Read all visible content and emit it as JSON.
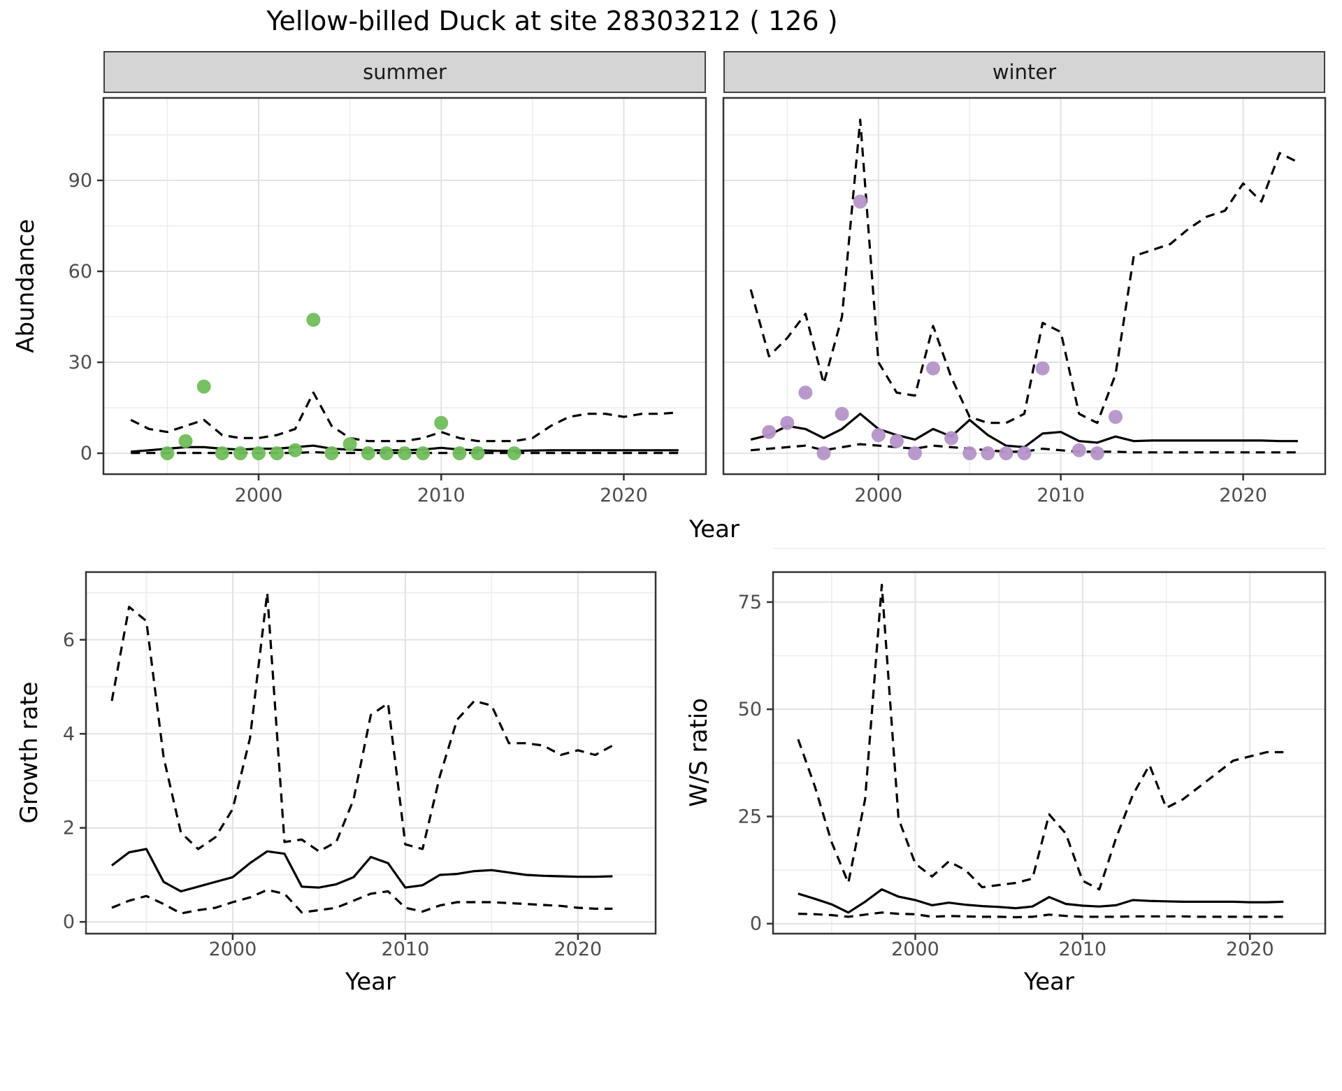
{
  "page_title": "Yellow-billed Duck at site 28303212 ( 126 )",
  "top_row": {
    "facets": [
      {
        "label": "summer"
      },
      {
        "label": "winter"
      }
    ],
    "ylabel": "Abundance",
    "xlabel": "Year"
  },
  "bottom_row": [
    {
      "ylabel": "Growth rate",
      "xlabel": "Year"
    },
    {
      "ylabel": "W/S ratio",
      "xlabel": "Year"
    }
  ],
  "colors": {
    "summer_points": "#70BD5B",
    "winter_points": "#B593C8",
    "line": "#000000",
    "strip_bg": "#D5D5D5",
    "grid_major": "#E2E2E2",
    "grid_minor": "#EDEDED",
    "panel_border": "#333333",
    "tick_text": "#4D4D4D"
  },
  "chart_data": [
    {
      "type": "line",
      "facet": "summer",
      "xlabel": "Year",
      "ylabel": "Abundance",
      "x": [
        1993,
        1994,
        1995,
        1996,
        1997,
        1998,
        1999,
        2000,
        2001,
        2002,
        2003,
        2004,
        2005,
        2006,
        2007,
        2008,
        2009,
        2010,
        2011,
        2012,
        2013,
        2014,
        2015,
        2016,
        2017,
        2018,
        2019,
        2020,
        2021,
        2022,
        2023
      ],
      "series": [
        {
          "name": "median",
          "style": "solid",
          "values": [
            0.5,
            1,
            1.5,
            2,
            2,
            1.5,
            1.2,
            1.5,
            1.5,
            2,
            2.5,
            1.5,
            1.2,
            1,
            1,
            1,
            1.2,
            1.8,
            1.2,
            1,
            0.8,
            0.8,
            0.9,
            1,
            1,
            1,
            1,
            1,
            1,
            1,
            1
          ]
        },
        {
          "name": "lower_CI",
          "style": "dashed",
          "values": [
            0.1,
            0.1,
            0.1,
            0.1,
            0.1,
            0.1,
            0.1,
            0.1,
            0.1,
            0.1,
            0.4,
            0.1,
            0.1,
            0.1,
            0.1,
            0.1,
            0.1,
            0.1,
            0.1,
            0.1,
            0.1,
            0.1,
            0.1,
            0.1,
            0.1,
            0.1,
            0.1,
            0.1,
            0.1,
            0.1,
            0.1
          ]
        },
        {
          "name": "upper_CI",
          "style": "dashed",
          "values": [
            11,
            8,
            7,
            9,
            11,
            6,
            5,
            5,
            6,
            8,
            20,
            9,
            5,
            4,
            4,
            4,
            5,
            7,
            5,
            4,
            4,
            4,
            5,
            9,
            12,
            13,
            13,
            12,
            13,
            13,
            13.5
          ]
        }
      ],
      "points": {
        "name": "observed",
        "color": "#70BD5B",
        "xy": [
          [
            1995,
            0
          ],
          [
            1996,
            4
          ],
          [
            1997,
            22
          ],
          [
            1998,
            0
          ],
          [
            1999,
            0
          ],
          [
            2000,
            0
          ],
          [
            2001,
            0
          ],
          [
            2002,
            1
          ],
          [
            2003,
            44
          ],
          [
            2004,
            0
          ],
          [
            2005,
            3
          ],
          [
            2006,
            0
          ],
          [
            2007,
            0
          ],
          [
            2008,
            0
          ],
          [
            2009,
            0
          ],
          [
            2010,
            10
          ],
          [
            2011,
            0
          ],
          [
            2012,
            0
          ],
          [
            2014,
            0
          ]
        ]
      },
      "xlim": [
        1991.5,
        2024.5
      ],
      "ylim": [
        -6.9,
        117.2
      ],
      "xticks": [
        2000,
        2010,
        2020
      ],
      "xticks_minor": [
        1995,
        2005,
        2015
      ],
      "yticks": [
        0,
        30,
        60,
        90
      ],
      "yticks_minor": [
        15,
        45,
        75,
        105
      ],
      "grid": true,
      "legend": "none"
    },
    {
      "type": "line",
      "facet": "winter",
      "xlabel": "Year",
      "ylabel": "Abundance",
      "x": [
        1993,
        1994,
        1995,
        1996,
        1997,
        1998,
        1999,
        2000,
        2001,
        2002,
        2003,
        2004,
        2005,
        2006,
        2007,
        2008,
        2009,
        2010,
        2011,
        2012,
        2013,
        2014,
        2015,
        2016,
        2017,
        2018,
        2019,
        2020,
        2021,
        2022,
        2023
      ],
      "series": [
        {
          "name": "median",
          "style": "solid",
          "values": [
            4.5,
            6,
            9,
            8,
            5,
            8,
            13,
            8,
            6,
            4.5,
            8,
            5.5,
            11,
            6,
            2.5,
            2,
            6.5,
            7,
            4,
            3.5,
            5.5,
            4,
            4.2,
            4.2,
            4.2,
            4.2,
            4.2,
            4.2,
            4.2,
            4,
            4
          ]
        },
        {
          "name": "lower_CI",
          "style": "dashed",
          "values": [
            1,
            1.5,
            2,
            2.5,
            1,
            2,
            3,
            2.5,
            2,
            1.5,
            2.5,
            2,
            1.5,
            1,
            0.5,
            0.5,
            1.5,
            1,
            0.5,
            0.5,
            0.5,
            0.3,
            0.3,
            0.3,
            0.3,
            0.3,
            0.3,
            0.3,
            0.3,
            0.3,
            0.3
          ]
        },
        {
          "name": "upper_CI",
          "style": "dashed",
          "values": [
            54,
            32,
            38,
            46,
            23,
            45,
            110,
            30,
            20,
            19,
            42,
            25,
            12,
            10,
            10,
            13,
            43,
            40,
            13,
            10,
            26,
            65,
            67,
            69,
            74,
            78,
            80,
            89,
            83,
            99,
            96
          ]
        }
      ],
      "points": {
        "name": "observed",
        "color": "#B593C8",
        "xy": [
          [
            1994,
            7
          ],
          [
            1995,
            10
          ],
          [
            1996,
            20
          ],
          [
            1997,
            0
          ],
          [
            1998,
            13
          ],
          [
            1999,
            83
          ],
          [
            2000,
            6
          ],
          [
            2001,
            4
          ],
          [
            2002,
            0
          ],
          [
            2003,
            28
          ],
          [
            2004,
            5
          ],
          [
            2005,
            0
          ],
          [
            2006,
            0
          ],
          [
            2007,
            0
          ],
          [
            2008,
            0
          ],
          [
            2009,
            28
          ],
          [
            2011,
            1
          ],
          [
            2012,
            0
          ],
          [
            2013,
            12
          ]
        ]
      },
      "xlim": [
        1991.5,
        2024.5
      ],
      "ylim": [
        -6.9,
        117.2
      ],
      "xticks": [
        2000,
        2010,
        2020
      ],
      "xticks_minor": [
        1995,
        2005,
        2015
      ],
      "yticks": [
        0,
        30,
        60,
        90
      ],
      "yticks_minor": [
        15,
        45,
        75,
        105
      ],
      "grid": true,
      "legend": "none"
    },
    {
      "type": "line",
      "facet": "",
      "xlabel": "Year",
      "ylabel": "Growth rate",
      "x": [
        1993,
        1994,
        1995,
        1996,
        1997,
        1998,
        1999,
        2000,
        2001,
        2002,
        2003,
        2004,
        2005,
        2006,
        2007,
        2008,
        2009,
        2010,
        2011,
        2012,
        2013,
        2014,
        2015,
        2016,
        2017,
        2018,
        2019,
        2020,
        2021,
        2022
      ],
      "series": [
        {
          "name": "median",
          "style": "solid",
          "values": [
            1.2,
            1.48,
            1.55,
            0.85,
            0.65,
            0.75,
            0.85,
            0.95,
            1.25,
            1.5,
            1.45,
            0.75,
            0.73,
            0.8,
            0.95,
            1.38,
            1.25,
            0.73,
            0.78,
            1,
            1.02,
            1.08,
            1.1,
            1.05,
            1,
            0.98,
            0.97,
            0.96,
            0.96,
            0.97
          ]
        },
        {
          "name": "lower_CI",
          "style": "dashed",
          "values": [
            0.3,
            0.45,
            0.55,
            0.38,
            0.18,
            0.25,
            0.3,
            0.42,
            0.52,
            0.68,
            0.6,
            0.2,
            0.25,
            0.3,
            0.45,
            0.6,
            0.65,
            0.3,
            0.22,
            0.35,
            0.42,
            0.42,
            0.42,
            0.4,
            0.38,
            0.36,
            0.34,
            0.3,
            0.28,
            0.28
          ]
        },
        {
          "name": "upper_CI",
          "style": "dashed",
          "values": [
            4.7,
            6.7,
            6.4,
            3.5,
            1.9,
            1.55,
            1.8,
            2.4,
            3.9,
            7,
            1.7,
            1.75,
            1.5,
            1.7,
            2.6,
            4.4,
            4.65,
            1.65,
            1.55,
            3.1,
            4.3,
            4.7,
            4.6,
            3.8,
            3.8,
            3.75,
            3.55,
            3.65,
            3.55,
            3.75
          ]
        }
      ],
      "points": null,
      "xlim": [
        1991.5,
        2024.5
      ],
      "ylim": [
        -0.25,
        7.44
      ],
      "xticks": [
        2000,
        2010,
        2020
      ],
      "xticks_minor": [
        1995,
        2005,
        2015
      ],
      "yticks": [
        0,
        2,
        4,
        6
      ],
      "yticks_minor": [
        1,
        3,
        5,
        7
      ],
      "grid": true,
      "legend": "none"
    },
    {
      "type": "line",
      "facet": "",
      "xlabel": "Year",
      "ylabel": "W/S ratio",
      "x": [
        1993,
        1994,
        1995,
        1996,
        1997,
        1998,
        1999,
        2000,
        2001,
        2002,
        2003,
        2004,
        2005,
        2006,
        2007,
        2008,
        2009,
        2010,
        2011,
        2012,
        2013,
        2014,
        2015,
        2016,
        2017,
        2018,
        2019,
        2020,
        2021,
        2022
      ],
      "series": [
        {
          "name": "median",
          "style": "solid",
          "values": [
            7,
            5.8,
            4.5,
            2.6,
            5.1,
            8,
            6.3,
            5.5,
            4.3,
            4.9,
            4.4,
            4.1,
            3.9,
            3.6,
            4,
            6.2,
            4.6,
            4.2,
            4,
            4.3,
            5.5,
            5.3,
            5.2,
            5.1,
            5.1,
            5.1,
            5.1,
            5,
            5,
            5.1
          ]
        },
        {
          "name": "lower_CI",
          "style": "dashed",
          "values": [
            2.3,
            2.2,
            2,
            1.6,
            2.1,
            2.6,
            2.3,
            2.2,
            1.6,
            1.8,
            1.7,
            1.6,
            1.6,
            1.5,
            1.6,
            2.1,
            1.8,
            1.6,
            1.6,
            1.6,
            1.7,
            1.7,
            1.7,
            1.7,
            1.6,
            1.6,
            1.6,
            1.6,
            1.6,
            1.6
          ]
        },
        {
          "name": "upper_CI",
          "style": "dashed",
          "values": [
            43,
            32,
            19,
            9.5,
            29,
            79,
            24.5,
            14,
            11,
            14.5,
            12.5,
            8.5,
            9,
            9.5,
            10.5,
            25.5,
            21,
            10,
            8,
            20,
            30,
            37,
            27,
            29,
            32,
            35,
            38,
            39,
            40,
            40
          ]
        }
      ],
      "points": null,
      "xlim": [
        1991.5,
        2024.5
      ],
      "ylim": [
        -2.33,
        82
      ],
      "xticks": [
        2000,
        2010,
        2020
      ],
      "xticks_minor": [
        1995,
        2005,
        2015
      ],
      "yticks": [
        0,
        25,
        50,
        75
      ],
      "yticks_minor": [
        12.5,
        37.5,
        62.5,
        87.5
      ],
      "grid": true,
      "legend": "none"
    }
  ]
}
